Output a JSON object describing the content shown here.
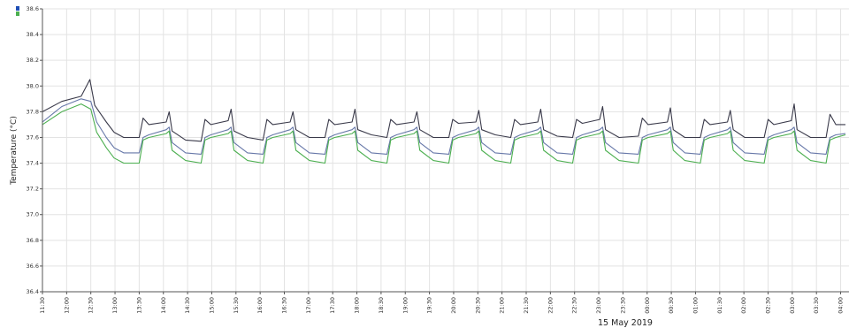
{
  "chart_data": {
    "type": "line",
    "ylabel": "Temperature (°C)",
    "xlabel": "",
    "date_label": "15 May 2019",
    "ylim": [
      36.4,
      38.6
    ],
    "y_ticks": [
      "36.4",
      "36.6",
      "36.8",
      "37.0",
      "37.2",
      "37.4",
      "37.6",
      "37.8",
      "38.0",
      "38.2",
      "38.4",
      "38.6"
    ],
    "x_ticks": [
      "11:30",
      "12:00",
      "12:30",
      "13:00",
      "13:30",
      "14:00",
      "14:30",
      "15:00",
      "15:30",
      "16:00",
      "16:30",
      "17:00",
      "17:30",
      "18:00",
      "18:30",
      "19:00",
      "19:30",
      "20:00",
      "20:30",
      "21:00",
      "21:30",
      "22:00",
      "22:30",
      "23:00",
      "23:30",
      "00:00",
      "00:30",
      "01:00",
      "01:30",
      "02:00",
      "02:30",
      "03:00",
      "03:30",
      "04:00"
    ],
    "grid": true,
    "series": [
      {
        "color": "#3a3a4a",
        "points": [
          [
            0,
            37.8
          ],
          [
            1,
            37.88
          ],
          [
            2,
            37.92
          ],
          [
            2.45,
            38.05
          ],
          [
            2.7,
            37.85
          ],
          [
            3.3,
            37.72
          ],
          [
            3.7,
            37.64
          ],
          [
            4.2,
            37.6
          ],
          [
            5.0,
            37.6
          ],
          [
            5.2,
            37.75
          ],
          [
            5.5,
            37.7
          ],
          [
            6.4,
            37.72
          ],
          [
            6.55,
            37.8
          ],
          [
            6.7,
            37.65
          ],
          [
            7.4,
            37.58
          ],
          [
            8.2,
            37.57
          ],
          [
            8.4,
            37.74
          ],
          [
            8.7,
            37.7
          ],
          [
            9.6,
            37.73
          ],
          [
            9.75,
            37.82
          ],
          [
            9.9,
            37.65
          ],
          [
            10.6,
            37.6
          ],
          [
            11.4,
            37.58
          ],
          [
            11.6,
            37.74
          ],
          [
            11.9,
            37.7
          ],
          [
            12.8,
            37.72
          ],
          [
            12.95,
            37.8
          ],
          [
            13.1,
            37.66
          ],
          [
            13.8,
            37.6
          ],
          [
            14.6,
            37.6
          ],
          [
            14.8,
            37.74
          ],
          [
            15.1,
            37.7
          ],
          [
            16.0,
            37.72
          ],
          [
            16.15,
            37.82
          ],
          [
            16.3,
            37.66
          ],
          [
            17.0,
            37.62
          ],
          [
            17.8,
            37.6
          ],
          [
            18.0,
            37.74
          ],
          [
            18.3,
            37.7
          ],
          [
            19.2,
            37.72
          ],
          [
            19.35,
            37.8
          ],
          [
            19.5,
            37.66
          ],
          [
            20.2,
            37.6
          ],
          [
            21.0,
            37.6
          ],
          [
            21.2,
            37.74
          ],
          [
            21.5,
            37.71
          ],
          [
            22.4,
            37.72
          ],
          [
            22.55,
            37.81
          ],
          [
            22.7,
            37.66
          ],
          [
            23.4,
            37.62
          ],
          [
            24.2,
            37.6
          ],
          [
            24.4,
            37.74
          ],
          [
            24.7,
            37.7
          ],
          [
            25.6,
            37.72
          ],
          [
            25.75,
            37.82
          ],
          [
            25.9,
            37.66
          ],
          [
            26.6,
            37.61
          ],
          [
            27.4,
            37.6
          ],
          [
            27.6,
            37.74
          ],
          [
            27.9,
            37.71
          ],
          [
            28.8,
            37.74
          ],
          [
            28.95,
            37.84
          ],
          [
            29.1,
            37.66
          ],
          [
            29.8,
            37.6
          ],
          [
            30.8,
            37.61
          ],
          [
            31.0,
            37.75
          ],
          [
            31.3,
            37.7
          ],
          [
            32.3,
            37.72
          ],
          [
            32.45,
            37.83
          ],
          [
            32.6,
            37.66
          ],
          [
            33.2,
            37.6
          ],
          [
            34.0,
            37.6
          ],
          [
            34.2,
            37.74
          ],
          [
            34.5,
            37.7
          ],
          [
            35.4,
            37.72
          ],
          [
            35.55,
            37.81
          ],
          [
            35.7,
            37.66
          ],
          [
            36.3,
            37.6
          ],
          [
            37.3,
            37.6
          ],
          [
            37.5,
            37.74
          ],
          [
            37.8,
            37.7
          ],
          [
            38.7,
            37.73
          ],
          [
            38.85,
            37.86
          ],
          [
            39.0,
            37.66
          ],
          [
            39.7,
            37.6
          ],
          [
            40.5,
            37.6
          ],
          [
            40.7,
            37.78
          ],
          [
            41.0,
            37.7
          ],
          [
            41.5,
            37.7
          ]
        ]
      },
      {
        "color": "#6677a8",
        "points": [
          [
            0,
            37.72
          ],
          [
            1,
            37.84
          ],
          [
            2,
            37.9
          ],
          [
            2.5,
            37.88
          ],
          [
            2.8,
            37.72
          ],
          [
            3.3,
            37.6
          ],
          [
            3.7,
            37.52
          ],
          [
            4.2,
            37.48
          ],
          [
            5.0,
            37.48
          ],
          [
            5.2,
            37.6
          ],
          [
            5.5,
            37.62
          ],
          [
            6.4,
            37.66
          ],
          [
            6.55,
            37.68
          ],
          [
            6.7,
            37.56
          ],
          [
            7.4,
            37.48
          ],
          [
            8.2,
            37.47
          ],
          [
            8.4,
            37.6
          ],
          [
            8.7,
            37.62
          ],
          [
            9.6,
            37.66
          ],
          [
            9.75,
            37.68
          ],
          [
            9.9,
            37.56
          ],
          [
            10.6,
            37.48
          ],
          [
            11.4,
            37.47
          ],
          [
            11.6,
            37.6
          ],
          [
            11.9,
            37.62
          ],
          [
            12.8,
            37.66
          ],
          [
            12.95,
            37.68
          ],
          [
            13.1,
            37.56
          ],
          [
            13.8,
            37.48
          ],
          [
            14.6,
            37.47
          ],
          [
            14.8,
            37.6
          ],
          [
            15.1,
            37.62
          ],
          [
            16.0,
            37.66
          ],
          [
            16.15,
            37.68
          ],
          [
            16.3,
            37.56
          ],
          [
            17.0,
            37.48
          ],
          [
            17.8,
            37.47
          ],
          [
            18.0,
            37.6
          ],
          [
            18.3,
            37.62
          ],
          [
            19.2,
            37.66
          ],
          [
            19.35,
            37.68
          ],
          [
            19.5,
            37.56
          ],
          [
            20.2,
            37.48
          ],
          [
            21.0,
            37.47
          ],
          [
            21.2,
            37.6
          ],
          [
            21.5,
            37.62
          ],
          [
            22.4,
            37.66
          ],
          [
            22.55,
            37.68
          ],
          [
            22.7,
            37.56
          ],
          [
            23.4,
            37.48
          ],
          [
            24.2,
            37.47
          ],
          [
            24.4,
            37.6
          ],
          [
            24.7,
            37.62
          ],
          [
            25.6,
            37.66
          ],
          [
            25.75,
            37.68
          ],
          [
            25.9,
            37.56
          ],
          [
            26.6,
            37.48
          ],
          [
            27.4,
            37.47
          ],
          [
            27.6,
            37.6
          ],
          [
            27.9,
            37.62
          ],
          [
            28.8,
            37.66
          ],
          [
            28.95,
            37.68
          ],
          [
            29.1,
            37.56
          ],
          [
            29.8,
            37.48
          ],
          [
            30.8,
            37.47
          ],
          [
            31.0,
            37.6
          ],
          [
            31.3,
            37.62
          ],
          [
            32.3,
            37.66
          ],
          [
            32.45,
            37.68
          ],
          [
            32.6,
            37.56
          ],
          [
            33.2,
            37.48
          ],
          [
            34.0,
            37.47
          ],
          [
            34.2,
            37.6
          ],
          [
            34.5,
            37.62
          ],
          [
            35.4,
            37.66
          ],
          [
            35.55,
            37.68
          ],
          [
            35.7,
            37.56
          ],
          [
            36.3,
            37.48
          ],
          [
            37.3,
            37.47
          ],
          [
            37.5,
            37.6
          ],
          [
            37.8,
            37.62
          ],
          [
            38.7,
            37.66
          ],
          [
            38.85,
            37.68
          ],
          [
            39.0,
            37.56
          ],
          [
            39.7,
            37.48
          ],
          [
            40.5,
            37.47
          ],
          [
            40.7,
            37.6
          ],
          [
            41.0,
            37.62
          ],
          [
            41.5,
            37.63
          ]
        ]
      },
      {
        "color": "#4caf50",
        "points": [
          [
            0,
            37.7
          ],
          [
            1,
            37.8
          ],
          [
            2,
            37.86
          ],
          [
            2.5,
            37.82
          ],
          [
            2.8,
            37.64
          ],
          [
            3.3,
            37.52
          ],
          [
            3.7,
            37.44
          ],
          [
            4.2,
            37.4
          ],
          [
            5.0,
            37.4
          ],
          [
            5.2,
            37.58
          ],
          [
            5.5,
            37.6
          ],
          [
            6.4,
            37.63
          ],
          [
            6.55,
            37.65
          ],
          [
            6.7,
            37.5
          ],
          [
            7.4,
            37.42
          ],
          [
            8.2,
            37.4
          ],
          [
            8.4,
            37.58
          ],
          [
            8.7,
            37.6
          ],
          [
            9.6,
            37.63
          ],
          [
            9.75,
            37.65
          ],
          [
            9.9,
            37.5
          ],
          [
            10.6,
            37.42
          ],
          [
            11.4,
            37.4
          ],
          [
            11.6,
            37.58
          ],
          [
            11.9,
            37.6
          ],
          [
            12.8,
            37.63
          ],
          [
            12.95,
            37.65
          ],
          [
            13.1,
            37.5
          ],
          [
            13.8,
            37.42
          ],
          [
            14.6,
            37.4
          ],
          [
            14.8,
            37.58
          ],
          [
            15.1,
            37.6
          ],
          [
            16.0,
            37.63
          ],
          [
            16.15,
            37.65
          ],
          [
            16.3,
            37.5
          ],
          [
            17.0,
            37.42
          ],
          [
            17.8,
            37.4
          ],
          [
            18.0,
            37.58
          ],
          [
            18.3,
            37.6
          ],
          [
            19.2,
            37.63
          ],
          [
            19.35,
            37.65
          ],
          [
            19.5,
            37.5
          ],
          [
            20.2,
            37.42
          ],
          [
            21.0,
            37.4
          ],
          [
            21.2,
            37.58
          ],
          [
            21.5,
            37.6
          ],
          [
            22.4,
            37.63
          ],
          [
            22.55,
            37.65
          ],
          [
            22.7,
            37.5
          ],
          [
            23.4,
            37.42
          ],
          [
            24.2,
            37.4
          ],
          [
            24.4,
            37.58
          ],
          [
            24.7,
            37.6
          ],
          [
            25.6,
            37.63
          ],
          [
            25.75,
            37.65
          ],
          [
            25.9,
            37.5
          ],
          [
            26.6,
            37.42
          ],
          [
            27.4,
            37.4
          ],
          [
            27.6,
            37.58
          ],
          [
            27.9,
            37.6
          ],
          [
            28.8,
            37.63
          ],
          [
            28.95,
            37.65
          ],
          [
            29.1,
            37.5
          ],
          [
            29.8,
            37.42
          ],
          [
            30.8,
            37.4
          ],
          [
            31.0,
            37.58
          ],
          [
            31.3,
            37.6
          ],
          [
            32.3,
            37.63
          ],
          [
            32.45,
            37.65
          ],
          [
            32.6,
            37.5
          ],
          [
            33.2,
            37.42
          ],
          [
            34.0,
            37.4
          ],
          [
            34.2,
            37.58
          ],
          [
            34.5,
            37.6
          ],
          [
            35.4,
            37.63
          ],
          [
            35.55,
            37.65
          ],
          [
            35.7,
            37.5
          ],
          [
            36.3,
            37.42
          ],
          [
            37.3,
            37.4
          ],
          [
            37.5,
            37.58
          ],
          [
            37.8,
            37.6
          ],
          [
            38.7,
            37.63
          ],
          [
            38.85,
            37.65
          ],
          [
            39.0,
            37.5
          ],
          [
            39.7,
            37.42
          ],
          [
            40.5,
            37.4
          ],
          [
            40.7,
            37.58
          ],
          [
            41.0,
            37.6
          ],
          [
            41.5,
            37.62
          ]
        ]
      }
    ]
  }
}
